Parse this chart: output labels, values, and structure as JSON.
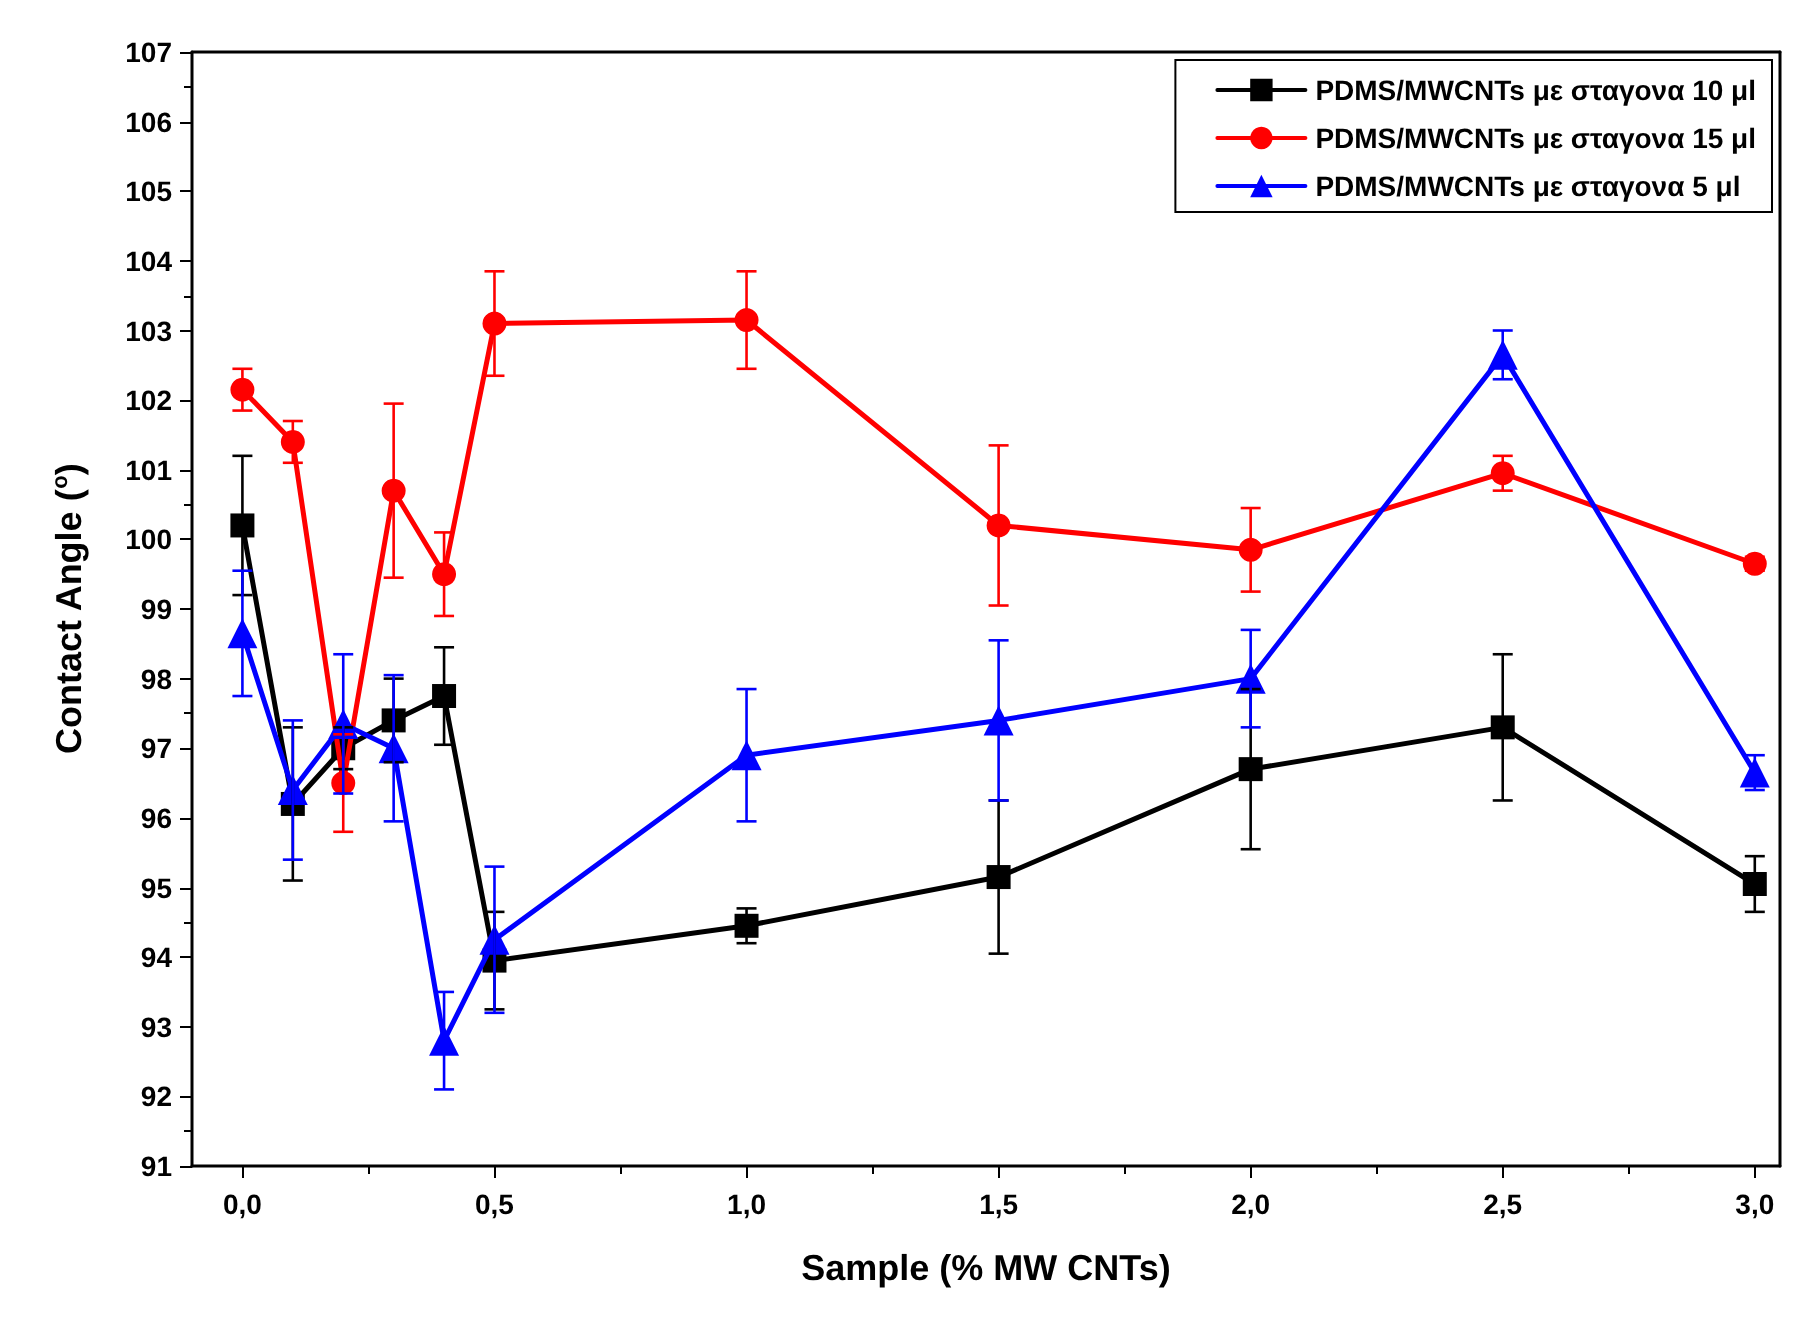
{
  "chart_data": {
    "type": "line",
    "xlabel": "Sample (% MW CNTs)",
    "ylabel": "Contact Angle ($^{o}$)",
    "x": [
      0,
      0.1,
      0.2,
      0.3,
      0.4,
      0.5,
      1.0,
      1.5,
      2.0,
      2.5,
      3.0
    ],
    "xlim": [
      -0.1,
      3.05
    ],
    "xticks": [
      {
        "value": 0,
        "label": "0,0"
      },
      {
        "value": 0.5,
        "label": "0,5"
      },
      {
        "value": 1,
        "label": "1,0"
      },
      {
        "value": 1.5,
        "label": "1,5"
      },
      {
        "value": 2,
        "label": "2,0"
      },
      {
        "value": 2.5,
        "label": "2,5"
      },
      {
        "value": 3,
        "label": "3,0"
      }
    ],
    "ylim": [
      91,
      107
    ],
    "yticks": [
      91,
      92,
      93,
      94,
      95,
      96,
      97,
      98,
      99,
      100,
      101,
      102,
      103,
      104,
      105,
      106,
      107
    ],
    "grid": false,
    "legend": "top right",
    "line_style": "solid",
    "series": [
      {
        "name": "PDMS/MWCNTs με σταγονα 10 μl",
        "color": "#000000",
        "marker": "square",
        "values": [
          100.2,
          96.2,
          97.0,
          97.4,
          97.75,
          93.95,
          94.45,
          95.15,
          96.7,
          97.3,
          95.05
        ],
        "errors": [
          1.0,
          1.1,
          0.3,
          0.6,
          0.7,
          0.7,
          0.25,
          1.1,
          1.15,
          1.05,
          0.4
        ]
      },
      {
        "name": "PDMS/MWCNTs με σταγονα 15 μl",
        "color": "#ff0000",
        "marker": "circle",
        "values": [
          102.15,
          101.4,
          96.5,
          100.7,
          99.5,
          103.1,
          103.15,
          100.2,
          99.85,
          100.95,
          99.65
        ],
        "errors": [
          0.3,
          0.3,
          0.7,
          1.25,
          0.6,
          0.75,
          0.7,
          1.15,
          0.6,
          0.25,
          0.1
        ]
      },
      {
        "name": "PDMS/MWCNTs με σταγονα 5 μl",
        "color": "#0000ff",
        "marker": "triangle",
        "values": [
          98.65,
          96.4,
          97.35,
          97.0,
          92.8,
          94.25,
          96.9,
          97.4,
          98.0,
          102.65,
          96.65
        ],
        "errors": [
          0.9,
          1.0,
          1.0,
          1.05,
          0.7,
          1.05,
          0.95,
          1.15,
          0.7,
          0.35,
          0.25
        ]
      }
    ]
  }
}
